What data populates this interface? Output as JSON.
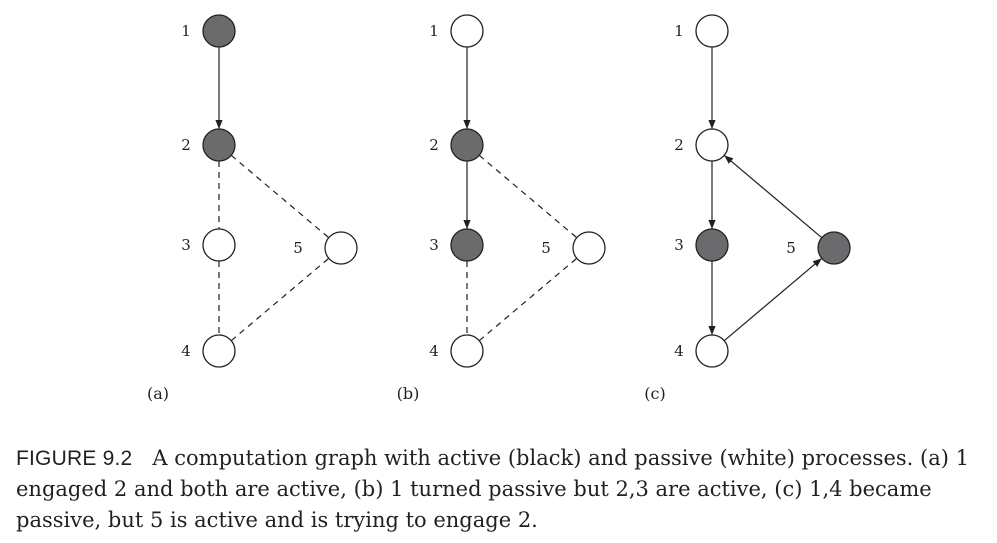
{
  "colors": {
    "active": "#6b6b6d",
    "passive": "#ffffff",
    "stroke": "#231f20"
  },
  "panels": [
    {
      "label": "(a)",
      "nodes": [
        {
          "id": "1",
          "state": "active"
        },
        {
          "id": "2",
          "state": "active"
        },
        {
          "id": "3",
          "state": "passive"
        },
        {
          "id": "4",
          "state": "passive"
        },
        {
          "id": "5",
          "state": "passive"
        }
      ],
      "edges": [
        {
          "from": "1",
          "to": "2",
          "style": "arrow"
        },
        {
          "from": "2",
          "to": "3",
          "style": "dashed"
        },
        {
          "from": "3",
          "to": "4",
          "style": "dashed"
        },
        {
          "from": "2",
          "to": "5",
          "style": "dashed"
        },
        {
          "from": "4",
          "to": "5",
          "style": "dashed"
        }
      ]
    },
    {
      "label": "(b)",
      "nodes": [
        {
          "id": "1",
          "state": "passive"
        },
        {
          "id": "2",
          "state": "active"
        },
        {
          "id": "3",
          "state": "active"
        },
        {
          "id": "4",
          "state": "passive"
        },
        {
          "id": "5",
          "state": "passive"
        }
      ],
      "edges": [
        {
          "from": "1",
          "to": "2",
          "style": "arrow"
        },
        {
          "from": "2",
          "to": "3",
          "style": "arrow"
        },
        {
          "from": "3",
          "to": "4",
          "style": "dashed"
        },
        {
          "from": "2",
          "to": "5",
          "style": "dashed"
        },
        {
          "from": "4",
          "to": "5",
          "style": "dashed"
        }
      ]
    },
    {
      "label": "(c)",
      "nodes": [
        {
          "id": "1",
          "state": "passive"
        },
        {
          "id": "2",
          "state": "passive"
        },
        {
          "id": "3",
          "state": "active"
        },
        {
          "id": "4",
          "state": "passive"
        },
        {
          "id": "5",
          "state": "active"
        }
      ],
      "edges": [
        {
          "from": "1",
          "to": "2",
          "style": "arrow"
        },
        {
          "from": "2",
          "to": "3",
          "style": "arrow"
        },
        {
          "from": "3",
          "to": "4",
          "style": "arrow"
        },
        {
          "from": "4",
          "to": "5",
          "style": "arrow"
        },
        {
          "from": "5",
          "to": "2",
          "style": "arrow"
        }
      ]
    }
  ],
  "caption": {
    "figure_number": "FIGURE 9.2",
    "text": "A computation graph with active (black) and passive (white) processes. (a) 1 engaged 2 and both are active, (b) 1 turned passive but 2,3 are active, (c) 1,4 became passive, but 5 is active and is trying to engage 2."
  }
}
